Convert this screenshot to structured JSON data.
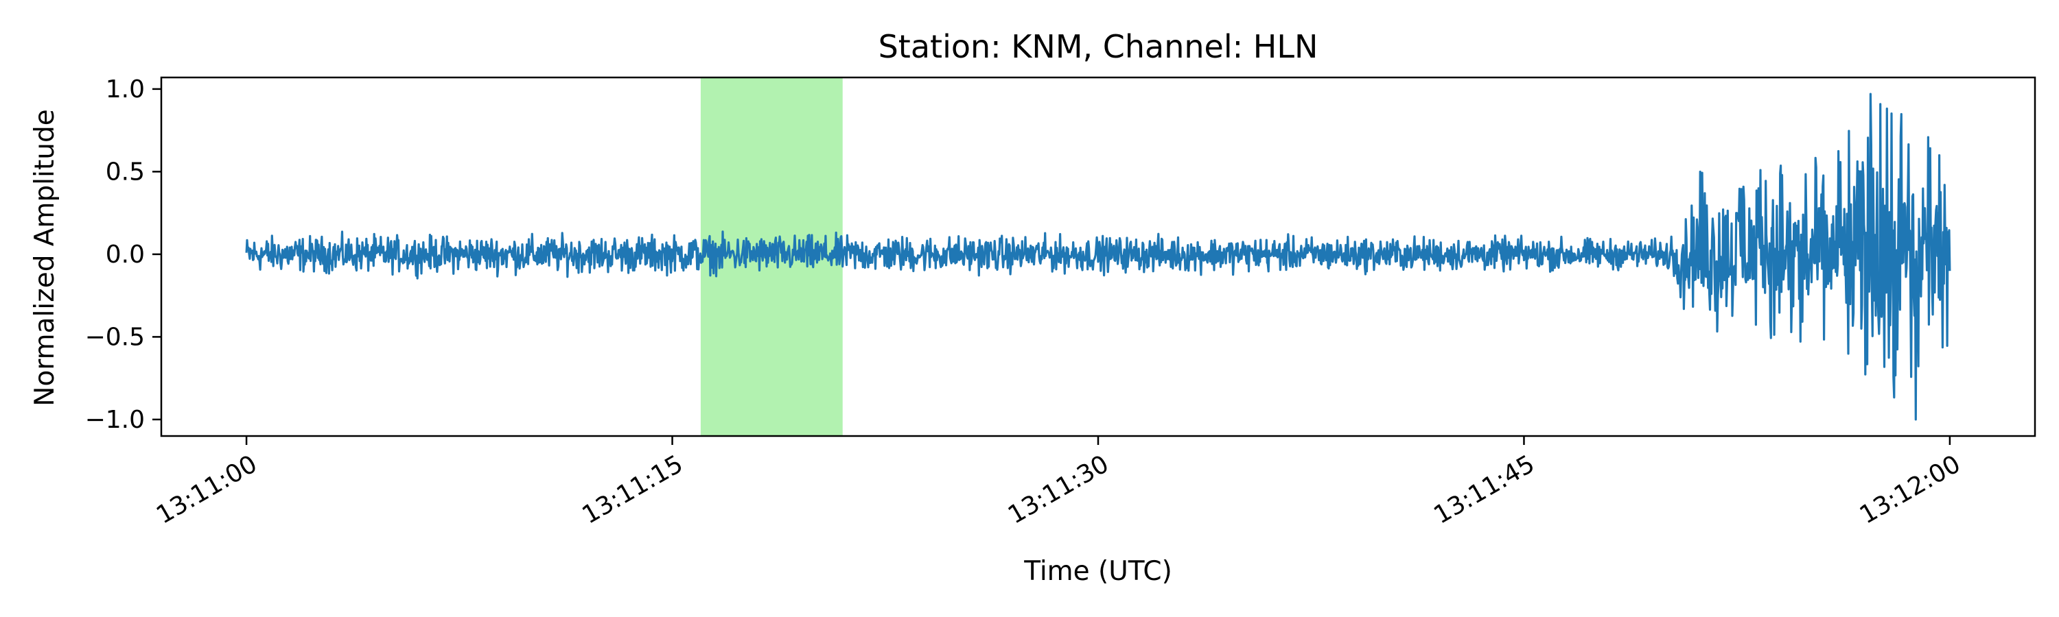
{
  "chart_data": {
    "type": "line",
    "title": "Station: KNM, Channel: HLN",
    "xlabel": "Time (UTC)",
    "ylabel": "Normalized Amplitude",
    "x_start": "13:11:00",
    "x_end": "13:12:00",
    "xlim": [
      "13:10:57",
      "13:12:03"
    ],
    "ylim": [
      -1.1,
      1.07
    ],
    "x_ticks": [
      "13:11:00",
      "13:11:15",
      "13:11:30",
      "13:11:45",
      "13:12:00"
    ],
    "y_ticks": [
      1.0,
      0.5,
      0.0,
      -0.5,
      -1.0
    ],
    "y_tick_labels": [
      "1.0",
      "0.5",
      "0.0",
      "−0.5",
      "−1.0"
    ],
    "highlight_window": {
      "start": "13:11:16",
      "end": "13:11:21",
      "color": "#b2f2b0"
    },
    "series": [
      {
        "color": "#1f77b4",
        "envelope": [
          {
            "t": "13:11:00",
            "amp": 0.15
          },
          {
            "t": "13:11:15",
            "amp": 0.16
          },
          {
            "t": "13:11:30",
            "amp": 0.15
          },
          {
            "t": "13:11:45",
            "amp": 0.14
          },
          {
            "t": "13:11:50",
            "amp": 0.12
          },
          {
            "t": "13:11:51",
            "amp": 0.5
          },
          {
            "t": "13:11:56",
            "amp": 0.6
          },
          {
            "t": "13:11:57",
            "amp": 0.95
          },
          {
            "t": "13:11:58",
            "amp": 0.9
          },
          {
            "t": "13:12:00",
            "amp": 0.6
          }
        ],
        "peaks": [
          {
            "t": "13:11:57.2",
            "value": 0.97
          },
          {
            "t": "13:11:58.8",
            "value": -1.0
          }
        ]
      }
    ],
    "grid": false,
    "legend": "none"
  }
}
